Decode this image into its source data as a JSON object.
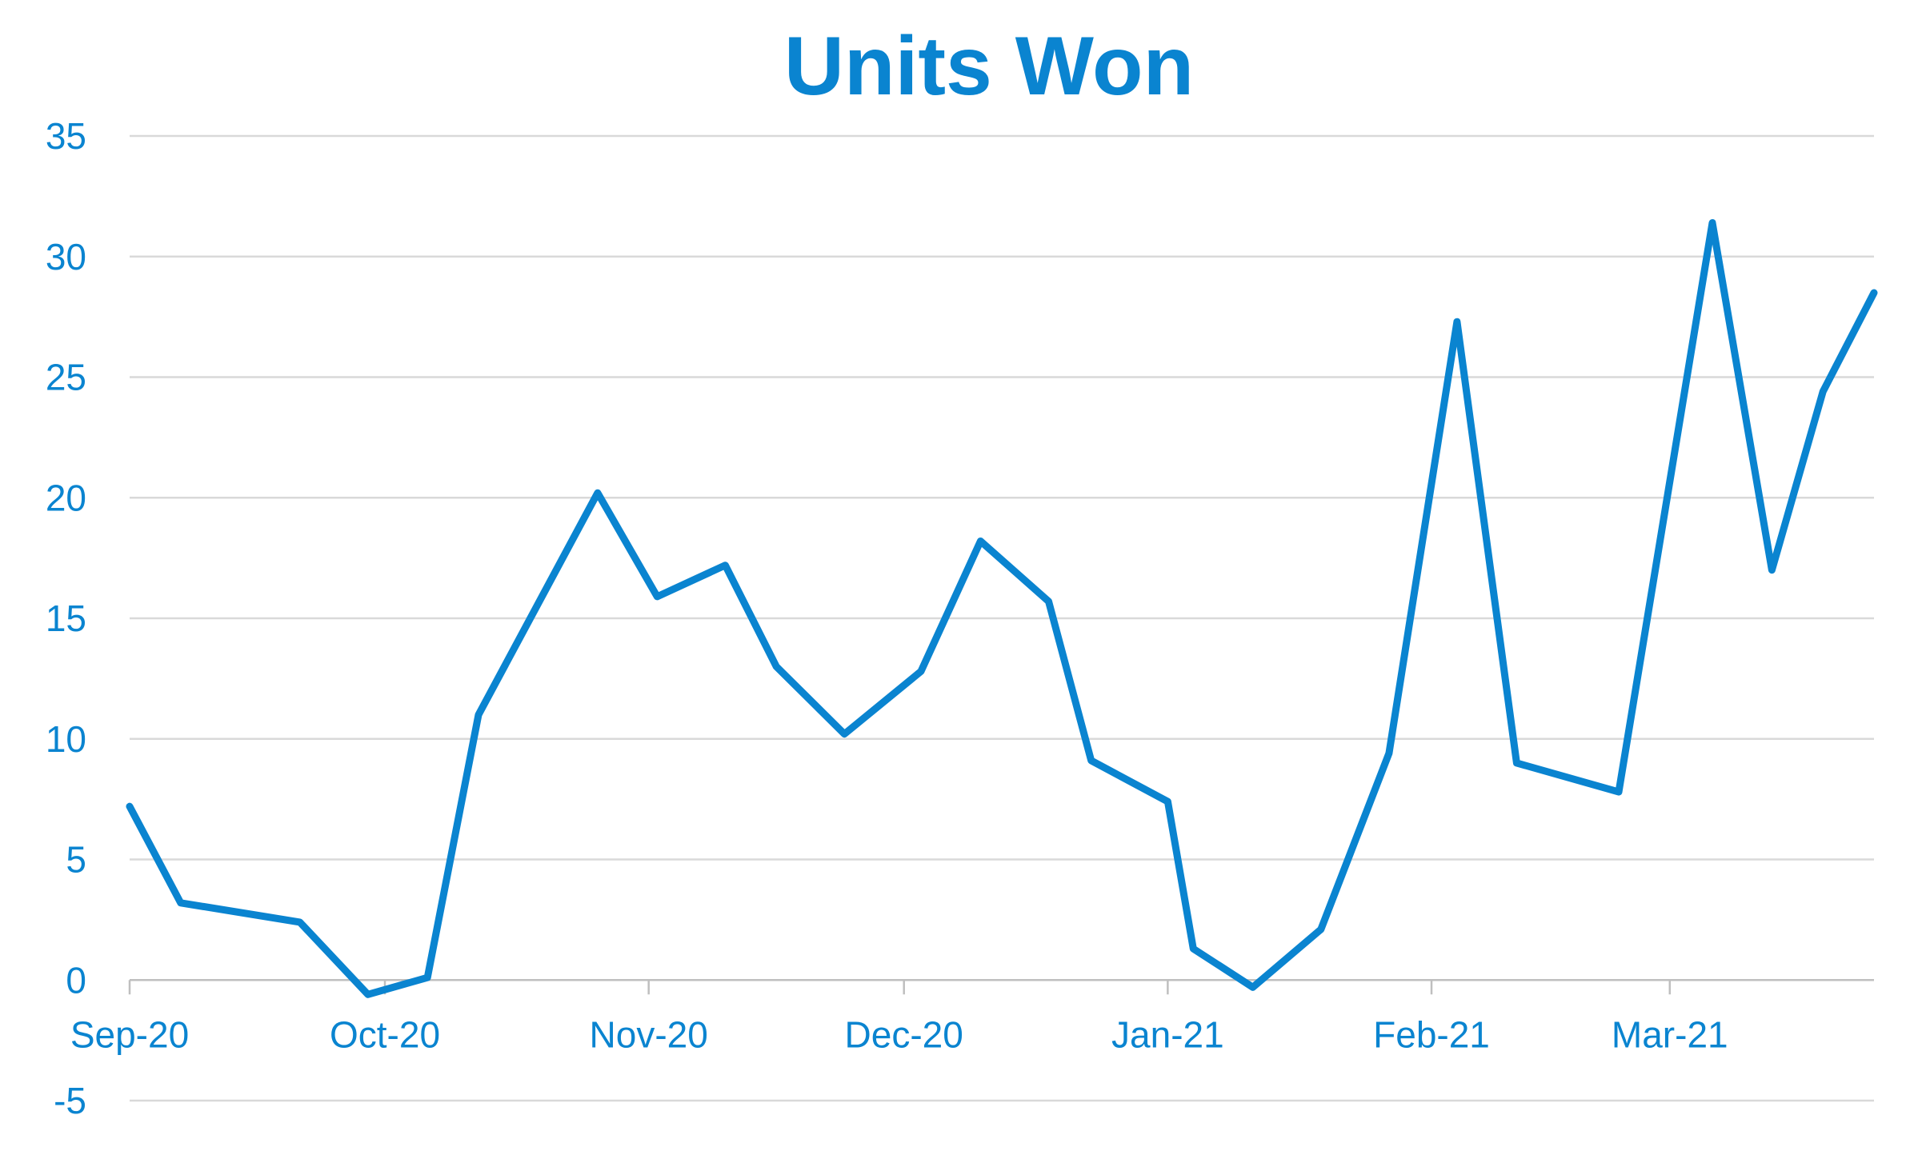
{
  "chart_data": {
    "type": "line",
    "title": "Units Won",
    "xlabel": "",
    "ylabel": "",
    "ylim": [
      -5,
      35
    ],
    "yticks": [
      "35",
      "30",
      "25",
      "20",
      "15",
      "10",
      "5",
      "0",
      "-5"
    ],
    "ytick_values": [
      35,
      30,
      25,
      20,
      15,
      10,
      5,
      0,
      -5
    ],
    "xlim": [
      "2020-09-01",
      "2021-03-25"
    ],
    "xticks": [
      "Sep-20",
      "Oct-20",
      "Nov-20",
      "Dec-20",
      "Jan-21",
      "Feb-21",
      "Mar-21"
    ],
    "xtick_dates": [
      "2020-09-01",
      "2020-10-01",
      "2020-11-01",
      "2020-12-01",
      "2021-01-01",
      "2021-02-01",
      "2021-03-01"
    ],
    "grid": true,
    "legend": "none",
    "colors": {
      "series": "#0a84d0",
      "title": "#0a84d0",
      "tick_labels": "#0a84d0",
      "grid": "#d9d9d9",
      "axis": "#bfbfbf"
    },
    "series": [
      {
        "x": [
          "2020-09-01",
          "2020-09-07",
          "2020-09-21",
          "2020-09-29",
          "2020-10-06",
          "2020-10-12",
          "2020-10-26",
          "2020-11-02",
          "2020-11-10",
          "2020-11-16",
          "2020-11-24",
          "2020-12-03",
          "2020-12-10",
          "2020-12-18",
          "2020-12-23",
          "2021-01-01",
          "2021-01-04",
          "2021-01-11",
          "2021-01-19",
          "2021-01-27",
          "2021-02-04",
          "2021-02-11",
          "2021-02-23",
          "2021-03-06",
          "2021-03-13",
          "2021-03-19"
        ],
        "y": [
          7.2,
          3.2,
          2.4,
          -0.6,
          0.1,
          11.0,
          20.2,
          15.9,
          17.2,
          13.0,
          10.2,
          12.8,
          18.2,
          15.7,
          9.1,
          7.4,
          1.3,
          -0.3,
          2.1,
          9.4,
          27.3,
          9.0,
          7.8,
          31.4,
          17.0,
          24.4
        ],
        "y_extra": []
      }
    ]
  }
}
